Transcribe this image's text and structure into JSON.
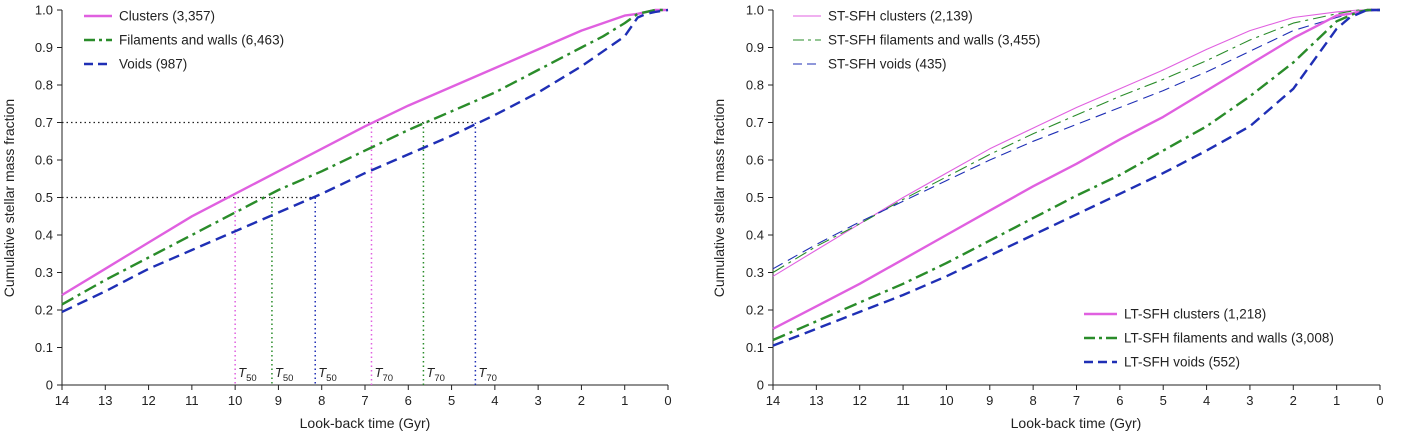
{
  "chart_data": [
    {
      "type": "line",
      "xlabel": "Look-back time (Gyr)",
      "ylabel": "Cumulative stellar mass fraction",
      "xlim": [
        14,
        0
      ],
      "ylim": [
        0,
        1.0
      ],
      "x_reversed": true,
      "xticks": [
        "14",
        "13",
        "12",
        "11",
        "10",
        "9",
        "8",
        "7",
        "6",
        "5",
        "4",
        "3",
        "2",
        "1",
        "0"
      ],
      "yticks": [
        "0",
        "0.1",
        "0.2",
        "0.3",
        "0.4",
        "0.5",
        "0.6",
        "0.7",
        "0.8",
        "0.9",
        "1.0"
      ],
      "grid": false,
      "legend_position": "top-left",
      "series": [
        {
          "name": "Clusters (3,357)",
          "color": "#e060e0",
          "style": "solid",
          "width": 2.4,
          "x": [
            14,
            13,
            12,
            11,
            10,
            9,
            8,
            7,
            6,
            5,
            4,
            3,
            2,
            1.5,
            1,
            0.7,
            0.5,
            0.3,
            0
          ],
          "y": [
            0.24,
            0.31,
            0.38,
            0.45,
            0.51,
            0.57,
            0.63,
            0.69,
            0.745,
            0.795,
            0.845,
            0.895,
            0.945,
            0.965,
            0.985,
            0.99,
            0.995,
            1.0,
            1.0
          ]
        },
        {
          "name": "Filaments and walls (6,463)",
          "color": "#2a8c2a",
          "style": "dashdot",
          "width": 2.4,
          "x": [
            14,
            13,
            12,
            11,
            10,
            9,
            8,
            7,
            6,
            5,
            4,
            3,
            2,
            1.5,
            1,
            0.7,
            0.5,
            0.3,
            0
          ],
          "y": [
            0.215,
            0.28,
            0.34,
            0.4,
            0.46,
            0.52,
            0.57,
            0.625,
            0.68,
            0.73,
            0.78,
            0.84,
            0.9,
            0.93,
            0.965,
            0.99,
            0.995,
            1.0,
            1.0
          ]
        },
        {
          "name": "Voids (987)",
          "color": "#1f2fb5",
          "style": "dashed",
          "width": 2.4,
          "x": [
            14,
            13,
            12,
            11,
            10,
            9,
            8,
            7,
            6,
            5,
            4,
            3,
            2,
            1.5,
            1,
            0.7,
            0.5,
            0.3,
            0
          ],
          "y": [
            0.195,
            0.25,
            0.31,
            0.36,
            0.41,
            0.46,
            0.51,
            0.565,
            0.615,
            0.665,
            0.72,
            0.78,
            0.85,
            0.89,
            0.93,
            0.98,
            0.99,
            0.995,
            1.0
          ]
        }
      ],
      "reference_lines": [
        {
          "type": "horizontal",
          "y": 0.7,
          "x_from": 14,
          "x_to": 4.45,
          "color": "#222222"
        },
        {
          "type": "horizontal",
          "y": 0.5,
          "x_from": 14,
          "x_to": 8.15,
          "color": "#222222"
        },
        {
          "type": "vertical",
          "x": 10.0,
          "y_to": 0.5,
          "color": "#e060e0",
          "label": "T",
          "sub": "50"
        },
        {
          "type": "vertical",
          "x": 9.15,
          "y_to": 0.5,
          "color": "#2a8c2a",
          "label": "T",
          "sub": "50"
        },
        {
          "type": "vertical",
          "x": 8.15,
          "y_to": 0.5,
          "color": "#1f2fb5",
          "label": "T",
          "sub": "50"
        },
        {
          "type": "vertical",
          "x": 6.85,
          "y_to": 0.7,
          "color": "#e060e0",
          "label": "T",
          "sub": "70"
        },
        {
          "type": "vertical",
          "x": 5.65,
          "y_to": 0.7,
          "color": "#2a8c2a",
          "label": "T",
          "sub": "70"
        },
        {
          "type": "vertical",
          "x": 4.45,
          "y_to": 0.7,
          "color": "#1f2fb5",
          "label": "T",
          "sub": "70"
        }
      ]
    },
    {
      "type": "line",
      "xlabel": "Look-back time (Gyr)",
      "ylabel": "Cumulative stellar mass fraction",
      "xlim": [
        14,
        0
      ],
      "ylim": [
        0,
        1.0
      ],
      "x_reversed": true,
      "xticks": [
        "14",
        "13",
        "12",
        "11",
        "10",
        "9",
        "8",
        "7",
        "6",
        "5",
        "4",
        "3",
        "2",
        "1",
        "0"
      ],
      "yticks": [
        "0",
        "0.1",
        "0.2",
        "0.3",
        "0.4",
        "0.5",
        "0.6",
        "0.7",
        "0.8",
        "0.9",
        "1.0"
      ],
      "grid": false,
      "legend_position": "top-left and bottom-right",
      "series": [
        {
          "name": "ST-SFH clusters (2,139)",
          "color": "#e060e0",
          "style": "solid",
          "width": 1.1,
          "legend": "top",
          "x": [
            14,
            13,
            12,
            11,
            10,
            9,
            8,
            7,
            6,
            5,
            4,
            3,
            2,
            1,
            0.5,
            0
          ],
          "y": [
            0.29,
            0.36,
            0.43,
            0.5,
            0.565,
            0.63,
            0.685,
            0.74,
            0.79,
            0.84,
            0.895,
            0.945,
            0.98,
            0.995,
            1.0,
            1.0
          ]
        },
        {
          "name": "ST-SFH filaments and walls (3,455)",
          "color": "#2a8c2a",
          "style": "dashdot",
          "width": 1.1,
          "legend": "top",
          "x": [
            14,
            13,
            12,
            11,
            10,
            9,
            8,
            7,
            6,
            5,
            4,
            3,
            2,
            1,
            0.5,
            0
          ],
          "y": [
            0.3,
            0.37,
            0.43,
            0.495,
            0.555,
            0.615,
            0.67,
            0.72,
            0.77,
            0.815,
            0.865,
            0.92,
            0.965,
            0.99,
            1.0,
            1.0
          ]
        },
        {
          "name": "ST-SFH voids (435)",
          "color": "#1f2fb5",
          "style": "dashed",
          "width": 1.1,
          "legend": "top",
          "x": [
            14,
            13,
            12,
            11,
            10,
            9,
            8,
            7,
            6,
            5,
            4,
            3,
            2,
            1,
            0.5,
            0
          ],
          "y": [
            0.31,
            0.375,
            0.435,
            0.49,
            0.545,
            0.6,
            0.65,
            0.695,
            0.74,
            0.785,
            0.835,
            0.89,
            0.945,
            0.98,
            0.995,
            1.0
          ]
        },
        {
          "name": "LT-SFH clusters (1,218)",
          "color": "#e060e0",
          "style": "solid",
          "width": 2.4,
          "legend": "bottom",
          "x": [
            14,
            13,
            12,
            11,
            10,
            9,
            8,
            7,
            6,
            5,
            4,
            3,
            2,
            1.5,
            1,
            0.7,
            0.5,
            0.3,
            0
          ],
          "y": [
            0.15,
            0.21,
            0.27,
            0.335,
            0.4,
            0.465,
            0.53,
            0.59,
            0.655,
            0.715,
            0.785,
            0.855,
            0.925,
            0.955,
            0.985,
            0.99,
            0.995,
            1.0,
            1.0
          ]
        },
        {
          "name": "LT-SFH filaments and walls (3,008)",
          "color": "#2a8c2a",
          "style": "dashdot",
          "width": 2.4,
          "legend": "bottom",
          "x": [
            14,
            13,
            12,
            11,
            10,
            9,
            8,
            7,
            6,
            5,
            4,
            3,
            2,
            1.5,
            1,
            0.7,
            0.5,
            0.3,
            0
          ],
          "y": [
            0.12,
            0.17,
            0.22,
            0.27,
            0.325,
            0.385,
            0.445,
            0.505,
            0.56,
            0.625,
            0.69,
            0.77,
            0.86,
            0.915,
            0.97,
            0.985,
            0.995,
            1.0,
            1.0
          ]
        },
        {
          "name": "LT-SFH voids (552)",
          "color": "#1f2fb5",
          "style": "dashed",
          "width": 2.4,
          "legend": "bottom",
          "x": [
            14,
            13,
            12,
            11,
            10,
            9,
            8,
            7,
            6,
            5,
            4,
            3,
            2,
            1.5,
            1,
            0.7,
            0.5,
            0.3,
            0
          ],
          "y": [
            0.105,
            0.15,
            0.195,
            0.24,
            0.29,
            0.345,
            0.4,
            0.455,
            0.51,
            0.565,
            0.625,
            0.69,
            0.79,
            0.87,
            0.95,
            0.98,
            0.99,
            1.0,
            1.0
          ]
        }
      ]
    }
  ]
}
